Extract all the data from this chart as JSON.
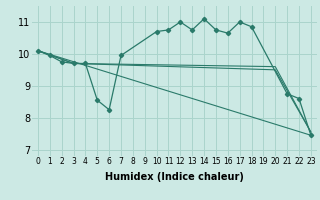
{
  "background_color": "#cce9e4",
  "grid_color": "#aad4cc",
  "line_color": "#2a7a6a",
  "xlabel": "Humidex (Indice chaleur)",
  "xlim": [
    -0.5,
    23.5
  ],
  "ylim": [
    6.8,
    11.5
  ],
  "yticks": [
    7,
    8,
    9,
    10,
    11
  ],
  "xtick_labels": [
    "0",
    "1",
    "2",
    "3",
    "4",
    "5",
    "6",
    "7",
    "8",
    "9",
    "10",
    "11",
    "12",
    "13",
    "14",
    "15",
    "16",
    "17",
    "18",
    "19",
    "20",
    "21",
    "22",
    "23"
  ],
  "series": [
    {
      "x": [
        0,
        1,
        2,
        3,
        4,
        5,
        6,
        7,
        10,
        11,
        12,
        13,
        14,
        15,
        16,
        17,
        18,
        21,
        22,
        23
      ],
      "y": [
        10.1,
        9.95,
        9.75,
        9.7,
        9.7,
        8.55,
        8.25,
        9.95,
        10.7,
        10.75,
        11.0,
        10.75,
        11.1,
        10.75,
        10.65,
        11.0,
        10.85,
        8.75,
        8.6,
        7.45
      ],
      "marker": true
    },
    {
      "x": [
        0,
        23
      ],
      "y": [
        10.1,
        7.45
      ],
      "marker": false
    },
    {
      "x": [
        0,
        3,
        20,
        23
      ],
      "y": [
        10.1,
        9.7,
        9.5,
        7.55
      ],
      "marker": false
    },
    {
      "x": [
        0,
        3,
        20,
        23
      ],
      "y": [
        10.1,
        9.7,
        9.6,
        7.55
      ],
      "marker": false
    }
  ]
}
